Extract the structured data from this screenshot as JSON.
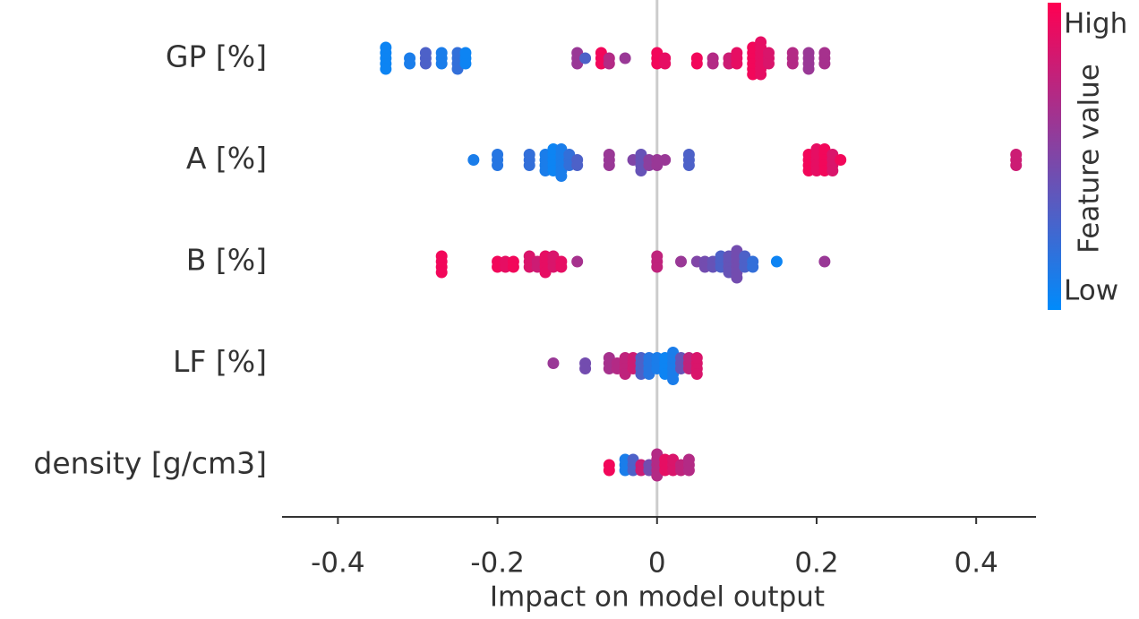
{
  "chart_data": {
    "type": "beeswarm",
    "x_label": "Impact on model output",
    "xlim": [
      -0.47,
      0.475
    ],
    "xticks": [
      -0.4,
      -0.2,
      0,
      0.2,
      0.4
    ],
    "colorbar": {
      "title": "Feature value",
      "high": "High",
      "low": "Low",
      "colors": [
        "#008bfb",
        "#ff0052"
      ]
    },
    "features": [
      {
        "name": "GP [%]",
        "values": [
          -0.34,
          -0.34,
          -0.34,
          -0.34,
          -0.34,
          -0.31,
          -0.31,
          -0.29,
          -0.29,
          -0.29,
          -0.27,
          -0.27,
          -0.27,
          -0.25,
          -0.25,
          -0.25,
          -0.25,
          -0.24,
          -0.24,
          -0.24,
          -0.1,
          -0.1,
          -0.1,
          -0.09,
          -0.07,
          -0.07,
          -0.07,
          -0.06,
          -0.06,
          -0.04,
          0,
          0,
          0,
          0.01,
          0.01,
          0.05,
          0.05,
          0.07,
          0.07,
          0.09,
          0.09,
          0.1,
          0.1,
          0.1,
          0.12,
          0.12,
          0.12,
          0.12,
          0.12,
          0.12,
          0.13,
          0.13,
          0.13,
          0.13,
          0.13,
          0.13,
          0.13,
          0.14,
          0.14,
          0.14,
          0.17,
          0.17,
          0.17,
          0.19,
          0.19,
          0.19,
          0.19,
          0.21,
          0.21,
          0.21
        ],
        "feature_values": [
          0.05,
          0.05,
          0.05,
          0.05,
          0.05,
          0.1,
          0.1,
          0.3,
          0.3,
          0.3,
          0.1,
          0.1,
          0.1,
          0.2,
          0.2,
          0.2,
          0.2,
          0.05,
          0.05,
          0.05,
          0.6,
          0.6,
          0.6,
          0.3,
          0.95,
          0.95,
          0.95,
          0.7,
          0.7,
          0.6,
          0.95,
          0.95,
          0.95,
          0.9,
          0.9,
          0.95,
          0.95,
          0.7,
          0.7,
          0.8,
          0.8,
          0.9,
          0.9,
          0.9,
          0.95,
          0.95,
          0.95,
          0.95,
          0.95,
          0.95,
          0.9,
          0.9,
          0.9,
          0.9,
          0.9,
          0.9,
          0.9,
          0.85,
          0.85,
          0.85,
          0.7,
          0.7,
          0.7,
          0.6,
          0.6,
          0.6,
          0.6,
          0.65,
          0.65,
          0.65
        ]
      },
      {
        "name": "A [%]",
        "values": [
          -0.23,
          -0.2,
          -0.2,
          -0.2,
          -0.16,
          -0.16,
          -0.16,
          -0.14,
          -0.14,
          -0.14,
          -0.14,
          -0.13,
          -0.13,
          -0.13,
          -0.13,
          -0.13,
          -0.12,
          -0.12,
          -0.12,
          -0.12,
          -0.12,
          -0.12,
          -0.11,
          -0.11,
          -0.11,
          -0.1,
          -0.1,
          -0.06,
          -0.06,
          -0.06,
          -0.03,
          -0.02,
          -0.02,
          -0.02,
          -0.02,
          -0.01,
          -0.01,
          0,
          0,
          0.01,
          0.04,
          0.04,
          0.04,
          0.19,
          0.19,
          0.19,
          0.19,
          0.2,
          0.2,
          0.2,
          0.2,
          0.2,
          0.21,
          0.21,
          0.21,
          0.21,
          0.21,
          0.22,
          0.22,
          0.22,
          0.22,
          0.23,
          0.45,
          0.45,
          0.45
        ],
        "feature_values": [
          0.1,
          0.15,
          0.15,
          0.15,
          0.2,
          0.2,
          0.2,
          0.1,
          0.1,
          0.1,
          0.1,
          0.05,
          0.05,
          0.05,
          0.05,
          0.05,
          0.1,
          0.1,
          0.1,
          0.1,
          0.1,
          0.1,
          0.2,
          0.2,
          0.2,
          0.3,
          0.3,
          0.6,
          0.6,
          0.6,
          0.5,
          0.4,
          0.4,
          0.4,
          0.4,
          0.55,
          0.55,
          0.6,
          0.6,
          0.6,
          0.3,
          0.3,
          0.3,
          0.95,
          0.95,
          0.95,
          0.95,
          0.9,
          0.9,
          0.9,
          0.9,
          0.9,
          0.95,
          0.95,
          0.95,
          0.95,
          0.95,
          0.85,
          0.85,
          0.85,
          0.85,
          0.95,
          0.8,
          0.8,
          0.8
        ]
      },
      {
        "name": "B [%]",
        "values": [
          -0.27,
          -0.27,
          -0.27,
          -0.27,
          -0.2,
          -0.2,
          -0.19,
          -0.19,
          -0.18,
          -0.18,
          -0.16,
          -0.16,
          -0.16,
          -0.15,
          -0.15,
          -0.14,
          -0.14,
          -0.14,
          -0.14,
          -0.13,
          -0.13,
          -0.13,
          -0.12,
          -0.12,
          -0.1,
          0,
          0,
          0,
          0.03,
          0.05,
          0.06,
          0.06,
          0.07,
          0.07,
          0.08,
          0.08,
          0.08,
          0.09,
          0.09,
          0.09,
          0.09,
          0.1,
          0.1,
          0.1,
          0.1,
          0.1,
          0.1,
          0.11,
          0.11,
          0.11,
          0.12,
          0.12,
          0.15,
          0.21
        ],
        "feature_values": [
          0.95,
          0.95,
          0.95,
          0.95,
          0.95,
          0.95,
          0.9,
          0.9,
          0.95,
          0.95,
          0.85,
          0.85,
          0.85,
          0.8,
          0.8,
          0.9,
          0.9,
          0.9,
          0.9,
          0.85,
          0.85,
          0.85,
          0.9,
          0.9,
          0.65,
          0.75,
          0.75,
          0.75,
          0.6,
          0.5,
          0.45,
          0.45,
          0.4,
          0.4,
          0.3,
          0.3,
          0.3,
          0.4,
          0.4,
          0.4,
          0.4,
          0.45,
          0.45,
          0.45,
          0.45,
          0.45,
          0.45,
          0.3,
          0.3,
          0.3,
          0.2,
          0.2,
          0.05,
          0.6
        ]
      },
      {
        "name": "LF [%]",
        "values": [
          -0.13,
          -0.09,
          -0.09,
          -0.06,
          -0.06,
          -0.06,
          -0.05,
          -0.05,
          -0.04,
          -0.04,
          -0.04,
          -0.04,
          -0.03,
          -0.03,
          -0.03,
          -0.02,
          -0.02,
          -0.02,
          -0.02,
          -0.01,
          -0.01,
          -0.01,
          -0.01,
          0,
          0,
          0,
          0.01,
          0.01,
          0.01,
          0.01,
          0.02,
          0.02,
          0.02,
          0.02,
          0.02,
          0.02,
          0.03,
          0.03,
          0.03,
          0.04,
          0.04,
          0.04,
          0.05,
          0.05,
          0.05,
          0.05
        ],
        "feature_values": [
          0.6,
          0.45,
          0.45,
          0.65,
          0.65,
          0.65,
          0.7,
          0.7,
          0.75,
          0.75,
          0.75,
          0.75,
          0.8,
          0.8,
          0.8,
          0.3,
          0.3,
          0.3,
          0.3,
          0.15,
          0.15,
          0.15,
          0.15,
          0.1,
          0.1,
          0.1,
          0.05,
          0.05,
          0.05,
          0.05,
          0.1,
          0.1,
          0.1,
          0.1,
          0.1,
          0.1,
          0.4,
          0.4,
          0.4,
          0.75,
          0.75,
          0.75,
          0.85,
          0.85,
          0.85,
          0.85
        ]
      },
      {
        "name": "density [g/cm3]",
        "values": [
          -0.06,
          -0.06,
          -0.04,
          -0.04,
          -0.04,
          -0.03,
          -0.03,
          -0.03,
          -0.02,
          -0.02,
          -0.01,
          -0.01,
          0,
          0,
          0,
          0,
          0,
          0.01,
          0.01,
          0.01,
          0.02,
          0.02,
          0.02,
          0.03,
          0.03,
          0.04,
          0.04,
          0.04
        ],
        "feature_values": [
          0.95,
          0.95,
          0.1,
          0.1,
          0.1,
          0.3,
          0.3,
          0.3,
          0.8,
          0.8,
          0.45,
          0.45,
          0.7,
          0.7,
          0.7,
          0.7,
          0.7,
          0.9,
          0.9,
          0.9,
          0.85,
          0.85,
          0.85,
          0.75,
          0.75,
          0.7,
          0.7,
          0.7
        ]
      }
    ]
  }
}
